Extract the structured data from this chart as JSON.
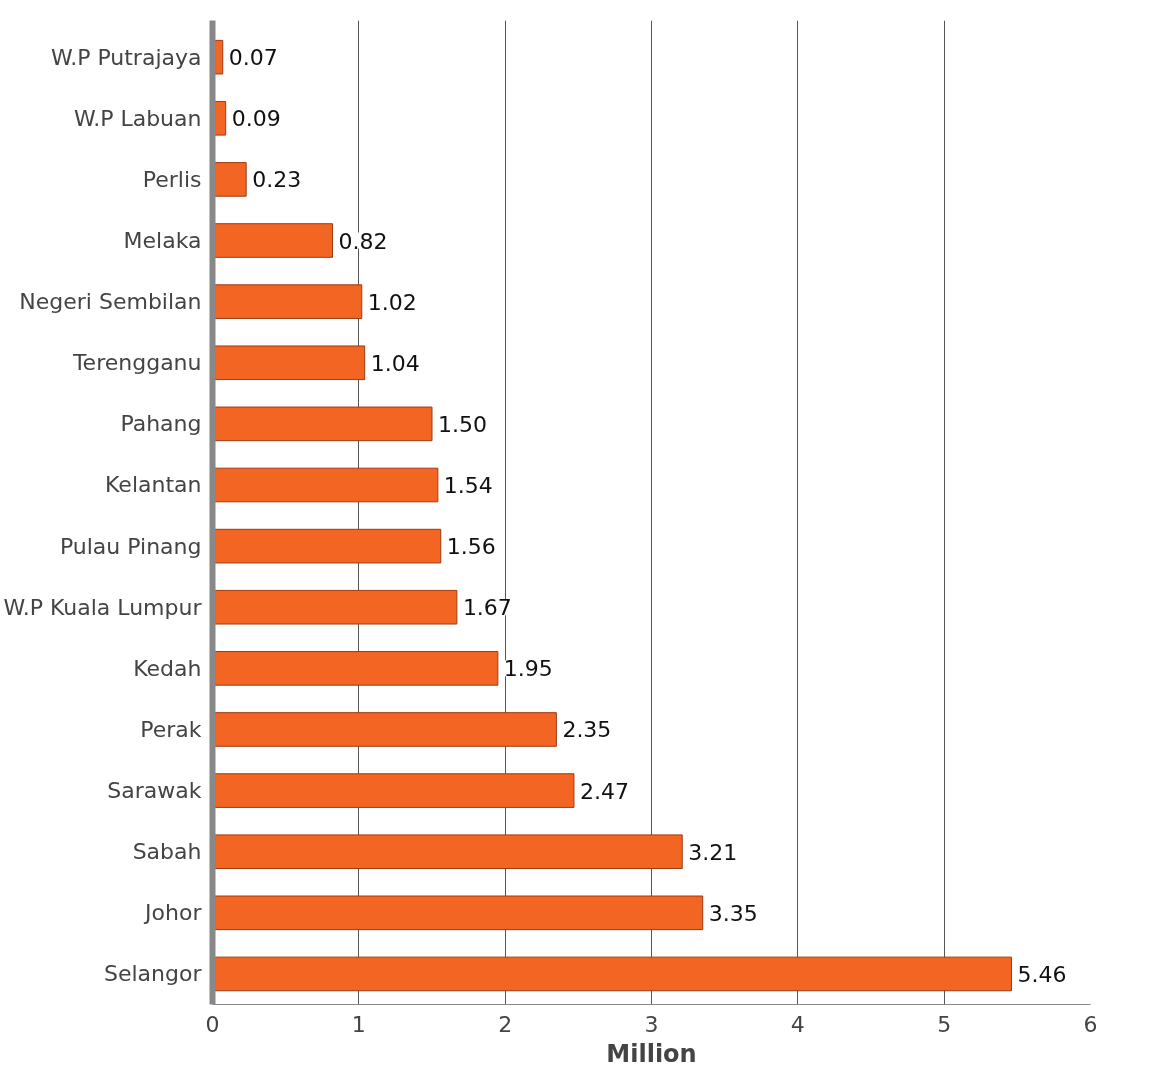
{
  "chart_data": {
    "type": "bar",
    "orientation": "horizontal",
    "xlabel": "Million",
    "categories": [
      "W.P Putrajaya",
      "W.P Labuan",
      "Perlis",
      "Melaka",
      "Negeri Sembilan",
      "Terengganu",
      "Pahang",
      "Kelantan",
      "Pulau Pinang",
      "W.P Kuala Lumpur",
      "Kedah",
      "Perak",
      "Sarawak",
      "Sabah",
      "Johor",
      "Selangor"
    ],
    "values": [
      0.07,
      0.09,
      0.23,
      0.82,
      1.02,
      1.04,
      1.5,
      1.54,
      1.56,
      1.67,
      1.95,
      2.35,
      2.47,
      3.21,
      3.35,
      5.46
    ],
    "value_labels": [
      "0.07",
      "0.09",
      "0.23",
      "0.82",
      "1.02",
      "1.04",
      "1.50",
      "1.54",
      "1.56",
      "1.67",
      "1.95",
      "2.35",
      "2.47",
      "3.21",
      "3.35",
      "5.46"
    ],
    "color": "#f26522",
    "xlim": [
      0,
      6
    ],
    "xticks": [
      0,
      1,
      2,
      3,
      4,
      5,
      6
    ],
    "grid": "x"
  }
}
